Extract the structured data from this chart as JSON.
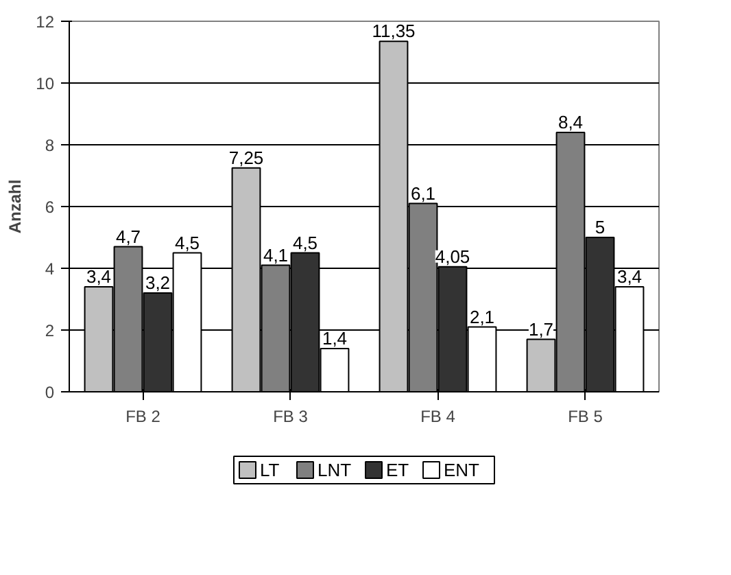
{
  "chart_data": {
    "type": "bar",
    "ylabel": "Anzahl",
    "categories": [
      "FB 2",
      "FB 3",
      "FB 4",
      "FB 5"
    ],
    "series": [
      {
        "name": "LT",
        "color": "#c0c0c0",
        "values": [
          3.4,
          7.25,
          11.35,
          1.7
        ],
        "value_labels": [
          "3,4",
          "7,25",
          "11,35",
          "1,7"
        ]
      },
      {
        "name": "LNT",
        "color": "#808080",
        "values": [
          4.7,
          4.1,
          6.1,
          8.4
        ],
        "value_labels": [
          "4,7",
          "4,1",
          "6,1",
          "8,4"
        ]
      },
      {
        "name": "ET",
        "color": "#333333",
        "values": [
          3.2,
          4.5,
          4.05,
          5
        ],
        "value_labels": [
          "3,2",
          "4,5",
          "4,05",
          "5"
        ]
      },
      {
        "name": "ENT",
        "color": "#ffffff",
        "values": [
          4.5,
          1.4,
          2.1,
          3.4
        ],
        "value_labels": [
          "4,5",
          "1,4",
          "2,1",
          "3,4"
        ]
      }
    ],
    "ylim": [
      0,
      12
    ],
    "yticks": [
      0,
      2,
      4,
      6,
      8,
      10,
      12
    ],
    "grid": "y",
    "legend": "bottom"
  }
}
